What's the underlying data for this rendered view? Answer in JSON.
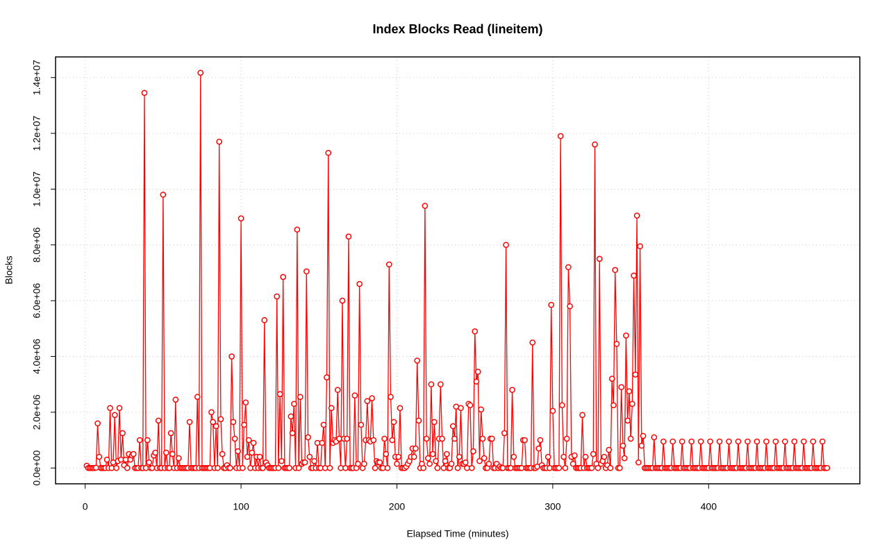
{
  "chart_data": {
    "type": "line",
    "title": "Index Blocks Read (lineitem)",
    "xlabel": "Elapsed Time (minutes)",
    "ylabel": "Blocks",
    "grid": true,
    "xlim": [
      -19,
      497
    ],
    "xticks": [
      0,
      100,
      200,
      300,
      400
    ],
    "ylim": [
      -567000,
      14740000
    ],
    "yticks": [
      {
        "value": 0,
        "label": "0.0e+00"
      },
      {
        "value": 2000000,
        "label": "2.0e+06"
      },
      {
        "value": 4000000,
        "label": "4.0e+06"
      },
      {
        "value": 6000000,
        "label": "6.0e+06"
      },
      {
        "value": 8000000,
        "label": "8.0e+06"
      },
      {
        "value": 10000000,
        "label": "1.0e+07"
      },
      {
        "value": 12000000,
        "label": "1.2e+07"
      },
      {
        "value": 14000000,
        "label": "1.4e+07"
      }
    ],
    "x": [
      1,
      2,
      3,
      4,
      5,
      6,
      7,
      8,
      9,
      10,
      11,
      12,
      13,
      14,
      15,
      16,
      17,
      18,
      19,
      20,
      21,
      22,
      23,
      24,
      25,
      26,
      27,
      28,
      29,
      30,
      31,
      32,
      33,
      34,
      35,
      36,
      37,
      38,
      39,
      40,
      41,
      42,
      43,
      44,
      45,
      46,
      47,
      48,
      49,
      50,
      51,
      52,
      53,
      54,
      55,
      56,
      57,
      58,
      59,
      60,
      61,
      62,
      63,
      64,
      65,
      66,
      67,
      68,
      69,
      70,
      71,
      72,
      73,
      74,
      75,
      76,
      77,
      78,
      79,
      80,
      81,
      82,
      83,
      84,
      85,
      86,
      87,
      88,
      89,
      90,
      91,
      92,
      93,
      94,
      95,
      96,
      97,
      98,
      99,
      100,
      101,
      102,
      103,
      104,
      105,
      106,
      107,
      108,
      109,
      110,
      111,
      112,
      113,
      114,
      115,
      116,
      117,
      118,
      119,
      120,
      121,
      122,
      123,
      124,
      125,
      126,
      127,
      128,
      129,
      130,
      131,
      132,
      133,
      134,
      135,
      136,
      137,
      138,
      139,
      140,
      141,
      142,
      143,
      144,
      145,
      146,
      147,
      148,
      149,
      150,
      151,
      152,
      153,
      154,
      155,
      156,
      157,
      158,
      159,
      160,
      161,
      162,
      163,
      164,
      165,
      166,
      167,
      168,
      169,
      170,
      171,
      172,
      173,
      174,
      175,
      176,
      177,
      178,
      179,
      180,
      181,
      182,
      183,
      184,
      185,
      186,
      187,
      188,
      189,
      190,
      191,
      192,
      193,
      194,
      195,
      196,
      197,
      198,
      199,
      200,
      201,
      202,
      203,
      204,
      205,
      206,
      207,
      208,
      209,
      210,
      211,
      212,
      213,
      214,
      215,
      216,
      217,
      218,
      219,
      220,
      221,
      222,
      223,
      224,
      225,
      226,
      227,
      228,
      229,
      230,
      231,
      232,
      233,
      234,
      235,
      236,
      237,
      238,
      239,
      240,
      241,
      242,
      243,
      244,
      245,
      246,
      247,
      248,
      249,
      250,
      251,
      252,
      253,
      254,
      255,
      256,
      257,
      258,
      259,
      260,
      261,
      262,
      263,
      264,
      265,
      266,
      267,
      268,
      269,
      270,
      271,
      272,
      273,
      274,
      275,
      276,
      277,
      278,
      279,
      280,
      281,
      282,
      283,
      284,
      285,
      286,
      287,
      288,
      289,
      290,
      291,
      292,
      293,
      294,
      295,
      296,
      297,
      298,
      299,
      300,
      301,
      302,
      303,
      304,
      305,
      306,
      307,
      308,
      309,
      310,
      311,
      312,
      313,
      314,
      315,
      316,
      317,
      318,
      319,
      320,
      321,
      322,
      323,
      324,
      325,
      326,
      327,
      328,
      329,
      330,
      331,
      332,
      333,
      334,
      335,
      336,
      337,
      338,
      339,
      340,
      341,
      342,
      343,
      344,
      345,
      346,
      347,
      348,
      349,
      350,
      351,
      352,
      353,
      354,
      355,
      356,
      357,
      358,
      359,
      360,
      361,
      362,
      363,
      364,
      365,
      366,
      367,
      368,
      369,
      370,
      371,
      372,
      373,
      374,
      375,
      376,
      377,
      378,
      379,
      380,
      381,
      382,
      383,
      384,
      385,
      386,
      387,
      388,
      389,
      390,
      391,
      392,
      393,
      394,
      395,
      396,
      397,
      398,
      399,
      400,
      401,
      402,
      403,
      404,
      405,
      406,
      407,
      408,
      409,
      410,
      411,
      412,
      413,
      414,
      415,
      416,
      417,
      418,
      419,
      420,
      421,
      422,
      423,
      424,
      425,
      426,
      427,
      428,
      429,
      430,
      431,
      432,
      433,
      434,
      435,
      436,
      437,
      438,
      439,
      440,
      441,
      442,
      443,
      444,
      445,
      446,
      447,
      448,
      449,
      450,
      451,
      452,
      453,
      454,
      455,
      456,
      457,
      458,
      459,
      460,
      461,
      462,
      463,
      464,
      465,
      466,
      467,
      468,
      469,
      470,
      471,
      472,
      473,
      474,
      475,
      476
    ],
    "series": [
      {
        "color": "#ff0000",
        "values": [
          80000.0,
          0,
          0,
          0,
          0,
          0,
          10000.0,
          1600000.0,
          400000.0,
          0,
          0,
          0,
          0,
          300000.0,
          0,
          2150000.0,
          0,
          200000.0,
          1900000.0,
          0,
          250000.0,
          2150000.0,
          300000.0,
          1250000.0,
          100000.0,
          300000.0,
          0,
          500000.0,
          300000.0,
          450000.0,
          500000.0,
          0,
          0,
          0,
          1000000.0,
          0,
          0,
          13450000.0,
          0,
          1000000.0,
          200000.0,
          0,
          0,
          450000.0,
          550000.0,
          0,
          1700000.0,
          0,
          0,
          9800000.0,
          0,
          550000.0,
          0,
          0,
          1250000.0,
          500000.0,
          0,
          2450000.0,
          0,
          350000.0,
          0,
          0,
          0,
          0,
          0,
          0,
          1650000.0,
          0,
          0,
          0,
          0,
          2550000.0,
          0,
          14170000.0,
          0,
          0,
          0,
          0,
          0,
          0,
          2000000.0,
          1650000.0,
          0,
          1500000.0,
          0,
          11700000.0,
          1750000.0,
          500000.0,
          0,
          0,
          100000.0,
          0,
          0,
          4000000.0,
          1650000.0,
          1050000.0,
          0,
          600000.0,
          0,
          8950000.0,
          0,
          1550000.0,
          2350000.0,
          400000.0,
          1000000.0,
          0,
          550000.0,
          900000.0,
          0,
          400000.0,
          0,
          400000.0,
          0,
          0,
          5300000.0,
          200000.0,
          100000.0,
          0,
          0,
          0,
          0,
          0,
          6150000.0,
          0,
          2650000.0,
          250000.0,
          6850000.0,
          0,
          0,
          0,
          0,
          1850000.0,
          1250000.0,
          2300000.0,
          0,
          8550000.0,
          0,
          2550000.0,
          150000.0,
          200000.0,
          200000.0,
          7050000.0,
          1100000.0,
          400000.0,
          0,
          0,
          250000.0,
          0,
          900000.0,
          0,
          0,
          900000.0,
          1550000.0,
          0,
          3250000.0,
          11300000.0,
          0,
          2150000.0,
          900000.0,
          1000000.0,
          950000.0,
          2800000.0,
          1050000.0,
          0,
          6000000.0,
          1050000.0,
          0,
          1050000.0,
          8300000.0,
          0,
          0,
          0,
          2600000.0,
          0,
          150000.0,
          6600000.0,
          1550000.0,
          0,
          150000.0,
          1000000.0,
          2400000.0,
          1000000.0,
          950000.0,
          2500000.0,
          1000000.0,
          0,
          250000.0,
          200000.0,
          200000.0,
          0,
          0,
          1050000.0,
          500000.0,
          0,
          7300000.0,
          2550000.0,
          1000000.0,
          1650000.0,
          400000.0,
          150000.0,
          400000.0,
          2150000.0,
          0,
          0,
          0,
          50000.0,
          150000.0,
          250000.0,
          400000.0,
          700000.0,
          400000.0,
          700000.0,
          3850000.0,
          1700000.0,
          0,
          150000.0,
          0,
          9400000.0,
          1050000.0,
          350000.0,
          150000.0,
          3000000.0,
          500000.0,
          1650000.0,
          250000.0,
          0,
          1050000.0,
          3000000.0,
          1050000.0,
          0,
          250000.0,
          500000.0,
          0,
          0,
          150000.0,
          1500000.0,
          1050000.0,
          2200000.0,
          0,
          400000.0,
          2150000.0,
          150000.0,
          150000.0,
          200000.0,
          0,
          2300000.0,
          2250000.0,
          0,
          600000.0,
          4900000.0,
          3100000.0,
          3450000.0,
          250000.0,
          2100000.0,
          1050000.0,
          350000.0,
          0,
          0,
          150000.0,
          1050000.0,
          1050000.0,
          0,
          0,
          150000.0,
          0,
          50000.0,
          0,
          0,
          1250000.0,
          8000000.0,
          0,
          0,
          0,
          2800000.0,
          400000.0,
          0,
          0,
          0,
          0,
          0,
          1000000.0,
          1000000.0,
          0,
          0,
          0,
          0,
          4500000.0,
          0,
          0,
          50000.0,
          700000.0,
          1000000.0,
          100000.0,
          0,
          0,
          0,
          400000.0,
          0,
          5850000.0,
          2050000.0,
          0,
          0,
          0,
          0,
          11900000.0,
          2250000.0,
          400000.0,
          0,
          1050000.0,
          7200000.0,
          5800000.0,
          400000.0,
          150000.0,
          450000.0,
          0,
          0,
          0,
          0,
          1900000.0,
          0,
          400000.0,
          0,
          0,
          0,
          0,
          500000.0,
          11600000.0,
          150000.0,
          0,
          7500000.0,
          150000.0,
          250000.0,
          400000.0,
          0,
          100000.0,
          650000.0,
          0,
          3200000.0,
          2250000.0,
          7100000.0,
          4450000.0,
          0,
          0,
          2900000.0,
          800000.0,
          350000.0,
          4750000.0,
          1700000.0,
          2750000.0,
          1050000.0,
          2300000.0,
          6900000.0,
          3350000.0,
          9050000.0,
          200000.0,
          7950000.0,
          800000.0,
          1150000.0,
          0,
          0,
          0,
          0,
          0,
          0,
          1100000.0,
          0,
          0,
          0,
          0,
          0,
          950000.0,
          0,
          0,
          0,
          0,
          0,
          950000.0,
          0,
          0,
          0,
          0,
          0,
          950000.0,
          0,
          0,
          0,
          0,
          0,
          950000.0,
          0,
          0,
          0,
          0,
          0,
          950000.0,
          0,
          0,
          0,
          0,
          0,
          950000.0,
          0,
          0,
          0,
          0,
          0,
          950000.0,
          0,
          0,
          0,
          0,
          0,
          950000.0,
          0,
          0,
          0,
          0,
          0,
          950000.0,
          0,
          0,
          0,
          0,
          0,
          950000.0,
          0,
          0,
          0,
          0,
          0,
          950000.0,
          0,
          0,
          0,
          0,
          0,
          950000.0,
          0,
          0,
          0,
          0,
          0,
          950000.0,
          0,
          0,
          0,
          0,
          0,
          950000.0,
          0,
          0,
          0,
          0,
          0,
          950000.0,
          0,
          0,
          0,
          0,
          0,
          950000.0,
          0,
          0,
          0,
          0,
          0,
          950000.0,
          0,
          0,
          0,
          0,
          0,
          950000.0,
          0,
          0,
          0
        ]
      }
    ]
  }
}
